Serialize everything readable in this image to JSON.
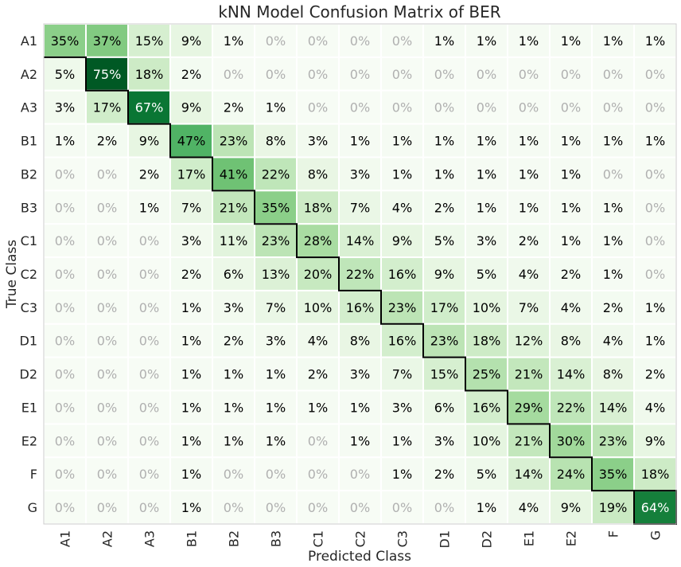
{
  "chart_data": {
    "type": "heatmap",
    "title": "kNN Model Confusion Matrix of BER",
    "xlabel": "Predicted Class",
    "ylabel": "True Class",
    "x_categories": [
      "A1",
      "A2",
      "A3",
      "B1",
      "B2",
      "B3",
      "C1",
      "C2",
      "C3",
      "D1",
      "D2",
      "E1",
      "E2",
      "F",
      "G"
    ],
    "y_categories": [
      "A1",
      "A2",
      "A3",
      "B1",
      "B2",
      "B3",
      "C1",
      "C2",
      "C3",
      "D1",
      "D2",
      "E1",
      "E2",
      "F",
      "G"
    ],
    "value_unit": "%",
    "values": [
      [
        35,
        37,
        15,
        9,
        1,
        0,
        0,
        0,
        0,
        1,
        1,
        1,
        1,
        1,
        1
      ],
      [
        5,
        75,
        18,
        2,
        0,
        0,
        0,
        0,
        0,
        0,
        0,
        0,
        0,
        0,
        0
      ],
      [
        3,
        17,
        67,
        9,
        2,
        1,
        0,
        0,
        0,
        0,
        0,
        0,
        0,
        0,
        0
      ],
      [
        1,
        2,
        9,
        47,
        23,
        8,
        3,
        1,
        1,
        1,
        1,
        1,
        1,
        1,
        1
      ],
      [
        0,
        0,
        2,
        17,
        41,
        22,
        8,
        3,
        1,
        1,
        1,
        1,
        1,
        0,
        0
      ],
      [
        0,
        0,
        1,
        7,
        21,
        35,
        18,
        7,
        4,
        2,
        1,
        1,
        1,
        1,
        0
      ],
      [
        0,
        0,
        0,
        3,
        11,
        23,
        28,
        14,
        9,
        5,
        3,
        2,
        1,
        1,
        0
      ],
      [
        0,
        0,
        0,
        2,
        6,
        13,
        20,
        22,
        16,
        9,
        5,
        4,
        2,
        1,
        0
      ],
      [
        0,
        0,
        0,
        1,
        3,
        7,
        10,
        16,
        23,
        17,
        10,
        7,
        4,
        2,
        1
      ],
      [
        0,
        0,
        0,
        1,
        2,
        3,
        4,
        8,
        16,
        23,
        18,
        12,
        8,
        4,
        1
      ],
      [
        0,
        0,
        0,
        1,
        1,
        1,
        2,
        3,
        7,
        15,
        25,
        21,
        14,
        8,
        2
      ],
      [
        0,
        0,
        0,
        1,
        1,
        1,
        1,
        1,
        3,
        6,
        16,
        29,
        22,
        14,
        4
      ],
      [
        0,
        0,
        0,
        1,
        1,
        1,
        0,
        1,
        1,
        3,
        10,
        21,
        30,
        23,
        9
      ],
      [
        0,
        0,
        0,
        1,
        0,
        0,
        0,
        0,
        1,
        2,
        5,
        14,
        24,
        35,
        18
      ],
      [
        0,
        0,
        0,
        1,
        0,
        0,
        0,
        0,
        0,
        0,
        1,
        4,
        9,
        19,
        64
      ]
    ],
    "colormap": "Greens",
    "zero_text_color": "#b0b0b0",
    "diagonal_outline": true,
    "grid": false
  }
}
